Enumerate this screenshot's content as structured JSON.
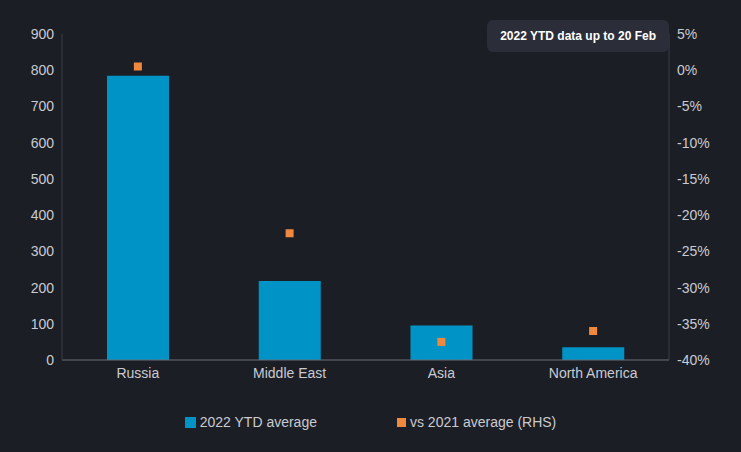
{
  "chart_data": {
    "type": "bar",
    "annotation": "2022 YTD data up to 20 Feb",
    "categories": [
      "Russia",
      "Middle East",
      "Asia",
      "North America"
    ],
    "series": [
      {
        "name": "2022 YTD average",
        "type": "bar",
        "color": "#0094c6",
        "values": [
          785,
          218,
          95,
          35
        ]
      },
      {
        "name": "vs 2021 average (RHS)",
        "type": "scatter",
        "marker": "square",
        "axis": "y2",
        "color": "#f0883e",
        "values": [
          0.5,
          -22.5,
          -37.5,
          -36
        ]
      }
    ],
    "ylim": [
      0,
      900
    ],
    "yticks": [
      0,
      100,
      200,
      300,
      400,
      500,
      600,
      700,
      800,
      900
    ],
    "y2lim": [
      -40,
      5
    ],
    "y2ticks": [
      {
        "value": 5,
        "label": "5%"
      },
      {
        "value": 0,
        "label": "0%"
      },
      {
        "value": -5,
        "label": "-5%"
      },
      {
        "value": -10,
        "label": "-10%"
      },
      {
        "value": -15,
        "label": "-15%"
      },
      {
        "value": -20,
        "label": "-20%"
      },
      {
        "value": -25,
        "label": "-25%"
      },
      {
        "value": -30,
        "label": "-30%"
      },
      {
        "value": -35,
        "label": "-35%"
      },
      {
        "value": -40,
        "label": "-40%"
      }
    ],
    "grid": false,
    "legend": "bottom"
  }
}
